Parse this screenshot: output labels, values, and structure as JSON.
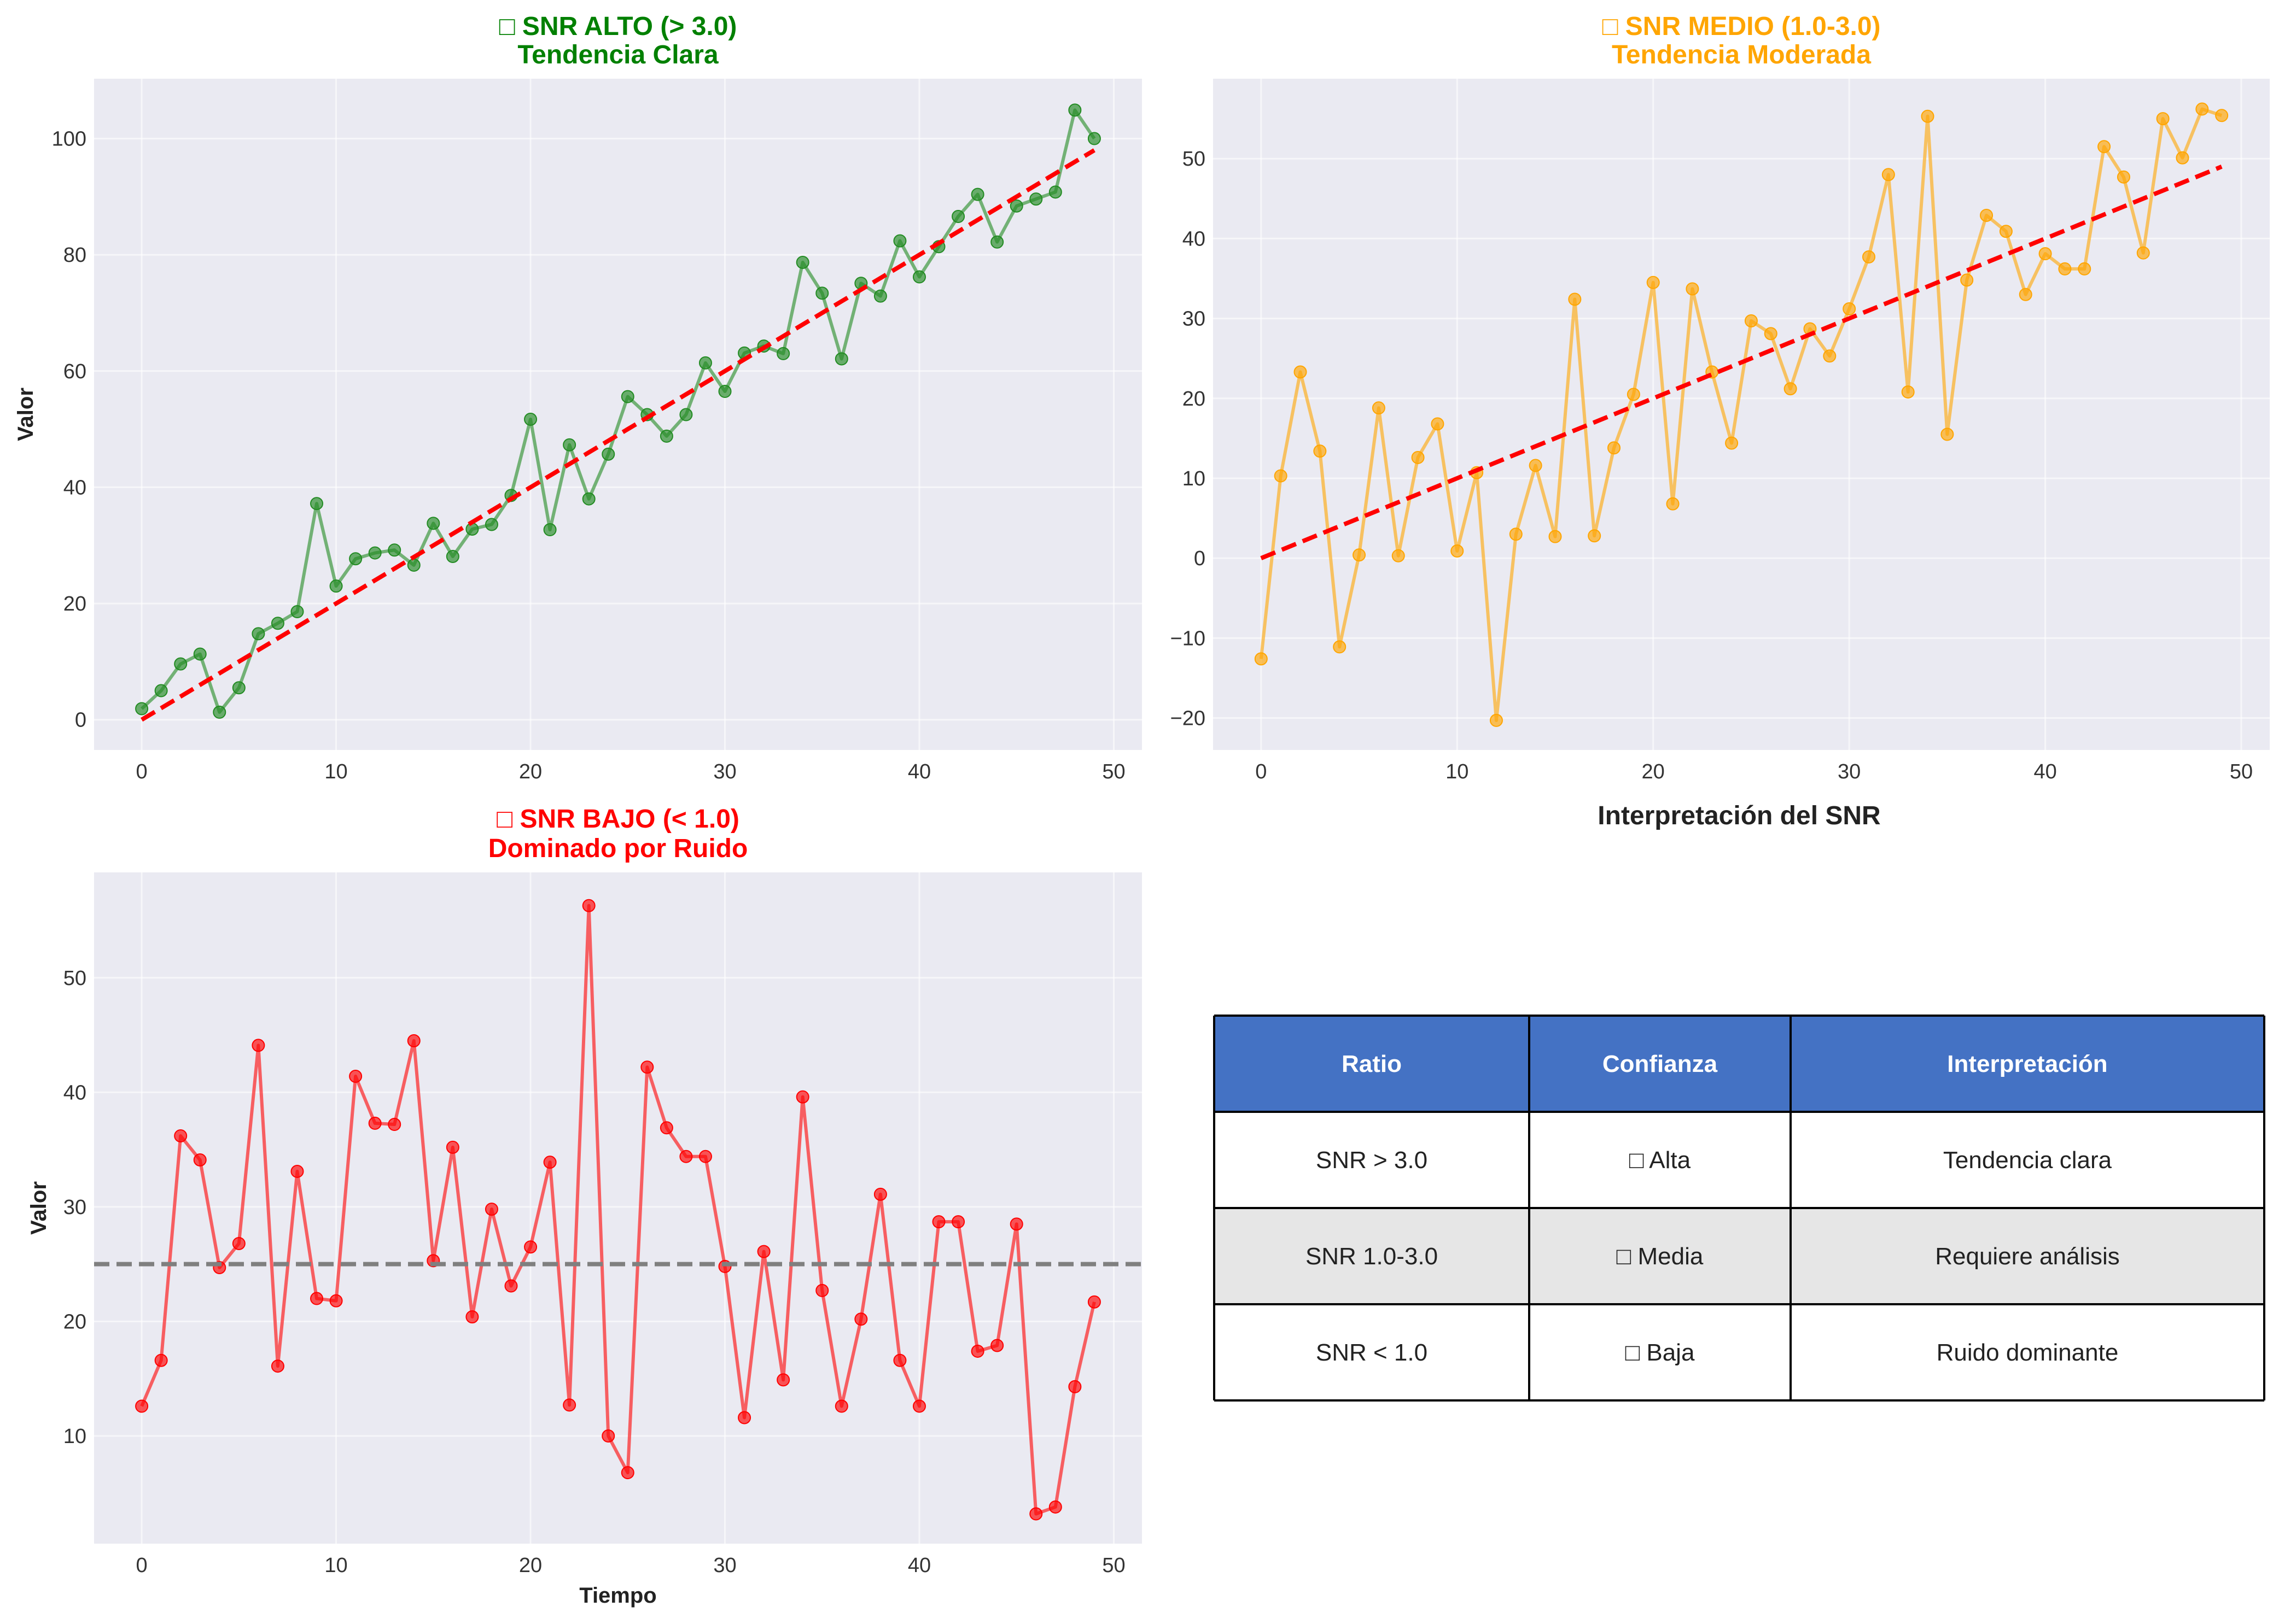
{
  "chart_data": [
    {
      "type": "line",
      "title": "□ SNR ALTO (> 3.0)",
      "subtitle": "Tendencia Clara",
      "title_color": "#008000",
      "xlabel": "",
      "ylabel": "Valor",
      "xlim": [
        -2.45,
        51.45
      ],
      "ylim": [
        -5.2,
        110.3
      ],
      "xticks": [
        "0",
        "10",
        "20",
        "30",
        "40",
        "50"
      ],
      "yticks": [
        "0",
        "20",
        "40",
        "60",
        "80",
        "100"
      ],
      "grid": true,
      "series": [
        {
          "color": "#228B22",
          "x": [
            0,
            1,
            2,
            3,
            4,
            5,
            6,
            7,
            8,
            9,
            10,
            11,
            12,
            13,
            14,
            15,
            16,
            17,
            18,
            19,
            20,
            21,
            22,
            23,
            24,
            25,
            26,
            27,
            28,
            29,
            30,
            31,
            32,
            33,
            34,
            35,
            36,
            37,
            38,
            39,
            40,
            41,
            42,
            43,
            44,
            45,
            46,
            47,
            48,
            49
          ],
          "y": [
            1.9,
            5.0,
            9.6,
            11.3,
            1.3,
            5.5,
            14.8,
            16.6,
            18.6,
            37.2,
            23.0,
            27.7,
            28.7,
            29.2,
            26.6,
            33.8,
            28.1,
            32.8,
            33.6,
            38.6,
            51.7,
            32.7,
            47.3,
            38.0,
            45.7,
            55.6,
            52.5,
            48.8,
            52.5,
            61.4,
            56.5,
            63.1,
            64.3,
            63.0,
            78.7,
            73.4,
            62.1,
            75.1,
            72.9,
            82.4,
            76.2,
            81.4,
            86.6,
            90.4,
            82.2,
            88.4,
            89.6,
            90.8,
            104.9,
            100.0
          ]
        },
        {
          "style": "dashed",
          "color": "#FF0000",
          "x": [
            0,
            49
          ],
          "y": [
            0.0,
            98.0
          ]
        }
      ]
    },
    {
      "type": "line",
      "title": "□ SNR MEDIO (1.0-3.0)",
      "subtitle": "Tendencia Moderada",
      "title_color": "#FFA500",
      "xlabel": "",
      "ylabel": "",
      "xlim": [
        -2.45,
        51.45
      ],
      "ylim": [
        -24.0,
        60.0
      ],
      "xticks": [
        "0",
        "10",
        "20",
        "30",
        "40",
        "50"
      ],
      "yticks": [
        "−20",
        "−10",
        "0",
        "10",
        "20",
        "30",
        "40",
        "50"
      ],
      "grid": true,
      "series": [
        {
          "color": "#FFA500",
          "x": [
            0,
            1,
            2,
            3,
            4,
            5,
            6,
            7,
            8,
            9,
            10,
            11,
            12,
            13,
            14,
            15,
            16,
            17,
            18,
            19,
            20,
            21,
            22,
            23,
            24,
            25,
            26,
            27,
            28,
            29,
            30,
            31,
            32,
            33,
            34,
            35,
            36,
            37,
            38,
            39,
            40,
            41,
            42,
            43,
            44,
            45,
            46,
            47,
            48,
            49
          ],
          "y": [
            -12.6,
            10.3,
            23.3,
            13.4,
            -11.1,
            0.4,
            18.8,
            0.3,
            12.6,
            16.8,
            0.9,
            10.7,
            -20.3,
            3.0,
            11.6,
            2.7,
            32.4,
            2.8,
            13.8,
            20.5,
            34.5,
            6.8,
            33.7,
            23.3,
            14.4,
            29.7,
            28.1,
            21.2,
            28.7,
            25.3,
            31.2,
            37.7,
            48.0,
            20.8,
            55.3,
            15.5,
            34.8,
            42.9,
            40.9,
            33.0,
            38.1,
            36.2,
            36.2,
            51.5,
            47.7,
            38.2,
            55.0,
            50.1,
            56.2,
            55.4
          ]
        },
        {
          "style": "dashed",
          "color": "#FF0000",
          "x": [
            0,
            49
          ],
          "y": [
            0.0,
            49.0
          ]
        }
      ]
    },
    {
      "type": "line",
      "title": "□ SNR BAJO (< 1.0)",
      "subtitle": "Dominado por Ruido",
      "title_color": "#FF0000",
      "xlabel": "Tiempo",
      "ylabel": "Valor",
      "xlim": [
        -2.45,
        51.45
      ],
      "ylim": [
        0.6,
        59.2
      ],
      "xticks": [
        "0",
        "10",
        "20",
        "30",
        "40",
        "50"
      ],
      "yticks": [
        "10",
        "20",
        "30",
        "40",
        "50"
      ],
      "grid": true,
      "series": [
        {
          "color": "#FF0000",
          "x": [
            0,
            1,
            2,
            3,
            4,
            5,
            6,
            7,
            8,
            9,
            10,
            11,
            12,
            13,
            14,
            15,
            16,
            17,
            18,
            19,
            20,
            21,
            22,
            23,
            24,
            25,
            26,
            27,
            28,
            29,
            30,
            31,
            32,
            33,
            34,
            35,
            36,
            37,
            38,
            39,
            40,
            41,
            42,
            43,
            44,
            45,
            46,
            47,
            48,
            49
          ],
          "y": [
            12.6,
            16.6,
            36.2,
            34.1,
            24.7,
            26.8,
            44.1,
            16.1,
            33.1,
            22.0,
            21.8,
            41.4,
            37.3,
            37.2,
            44.5,
            25.3,
            35.2,
            20.4,
            29.8,
            23.1,
            26.5,
            33.9,
            12.7,
            56.3,
            10.0,
            6.8,
            42.2,
            36.9,
            34.4,
            34.4,
            24.8,
            11.6,
            26.1,
            14.9,
            39.6,
            22.7,
            12.6,
            20.2,
            31.1,
            16.6,
            12.6,
            28.7,
            28.7,
            17.4,
            17.9,
            28.5,
            3.2,
            3.8,
            14.3,
            21.7
          ]
        },
        {
          "style": "dashed",
          "color": "#808080",
          "x": [
            -2.45,
            51.45
          ],
          "y": [
            25.0,
            25.0
          ]
        }
      ]
    },
    {
      "type": "table",
      "title": "Interpretación del SNR",
      "header_color": "#4472C4",
      "columns": [
        "Ratio",
        "Confianza",
        "Interpretación"
      ],
      "rows": [
        [
          "SNR > 3.0",
          "□ Alta",
          "Tendencia clara"
        ],
        [
          "SNR 1.0-3.0",
          "□ Media",
          "Requiere análisis"
        ],
        [
          "SNR < 1.0",
          "□ Baja",
          "Ruido dominante"
        ]
      ],
      "row_colors": [
        "#FFFFFF",
        "#E6E6E6",
        "#FFFFFF"
      ]
    }
  ]
}
